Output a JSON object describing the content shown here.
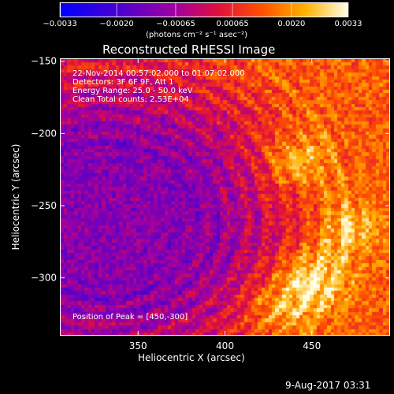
{
  "chart_data": {
    "type": "heatmap",
    "title": "Reconstructed RHESSI Image",
    "xlabel": "Heliocentric X (arcsec)",
    "ylabel": "Heliocentric Y (arcsec)",
    "xlim": [
      305,
      495
    ],
    "ylim": [
      -340,
      -148
    ],
    "x_ticks": [
      "350",
      "400",
      "450"
    ],
    "y_ticks": [
      "-150",
      "-200",
      "-250",
      "-300"
    ],
    "colorbar": {
      "min": -0.0033,
      "max": 0.0033,
      "ticks": [
        "-0.0033",
        "-0.0020",
        "-0.00065",
        "0.00065",
        "0.0020",
        "0.0033"
      ],
      "label": "(photons cm⁻² s⁻¹ asec⁻²)"
    },
    "info": [
      "22-Nov-2014 00:57:02.000 to 01:07:02.000",
      "Detectors: 3F 6F 9F, Att 1",
      "Energy Range: 25.0 - 50.0 keV",
      "Clean     Total counts: 2.53E+04"
    ],
    "peak_label": "Position of Peak = [450,-300]",
    "peak": [
      450,
      -300
    ],
    "sources": [
      {
        "x": 450,
        "y": -300,
        "value": 0.0033
      },
      {
        "x": 440,
        "y": -220,
        "value": 0.0028
      },
      {
        "x": 430,
        "y": -320,
        "value": 0.0024
      },
      {
        "x": 470,
        "y": -265,
        "value": 0.0022
      }
    ]
  },
  "footer": {
    "date": "9-Aug-2017 03:31"
  }
}
